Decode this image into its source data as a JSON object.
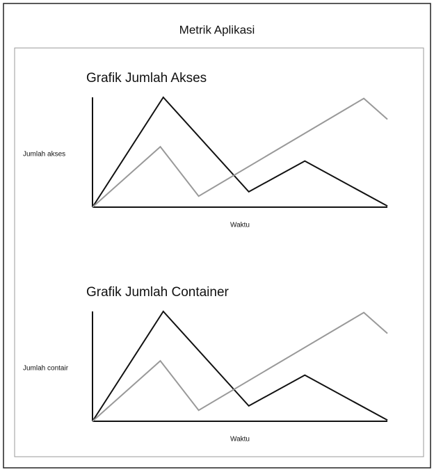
{
  "title": "Metrik Aplikasi",
  "chart_data": [
    {
      "type": "line",
      "title": "Grafik Jumlah Akses",
      "x_label": "Waktu",
      "y_label": "Jumlah akses",
      "xlim": [
        0,
        100
      ],
      "ylim": [
        0,
        100
      ],
      "series": [
        {
          "color": "#111111",
          "x": [
            0,
            24,
            53,
            72,
            100
          ],
          "values": [
            0,
            100,
            14,
            42,
            1
          ]
        },
        {
          "color": "#999999",
          "x": [
            0,
            23,
            36,
            92,
            100
          ],
          "values": [
            0,
            55,
            10,
            99,
            80
          ]
        }
      ]
    },
    {
      "type": "line",
      "title": "Grafik Jumlah Container",
      "x_label": "Waktu",
      "y_label": "Jumlah contair",
      "xlim": [
        0,
        100
      ],
      "ylim": [
        0,
        100
      ],
      "series": [
        {
          "color": "#111111",
          "x": [
            0,
            24,
            53,
            72,
            100
          ],
          "values": [
            0,
            100,
            14,
            42,
            1
          ]
        },
        {
          "color": "#999999",
          "x": [
            0,
            23,
            36,
            92,
            100
          ],
          "values": [
            0,
            55,
            10,
            99,
            80
          ]
        }
      ]
    }
  ]
}
